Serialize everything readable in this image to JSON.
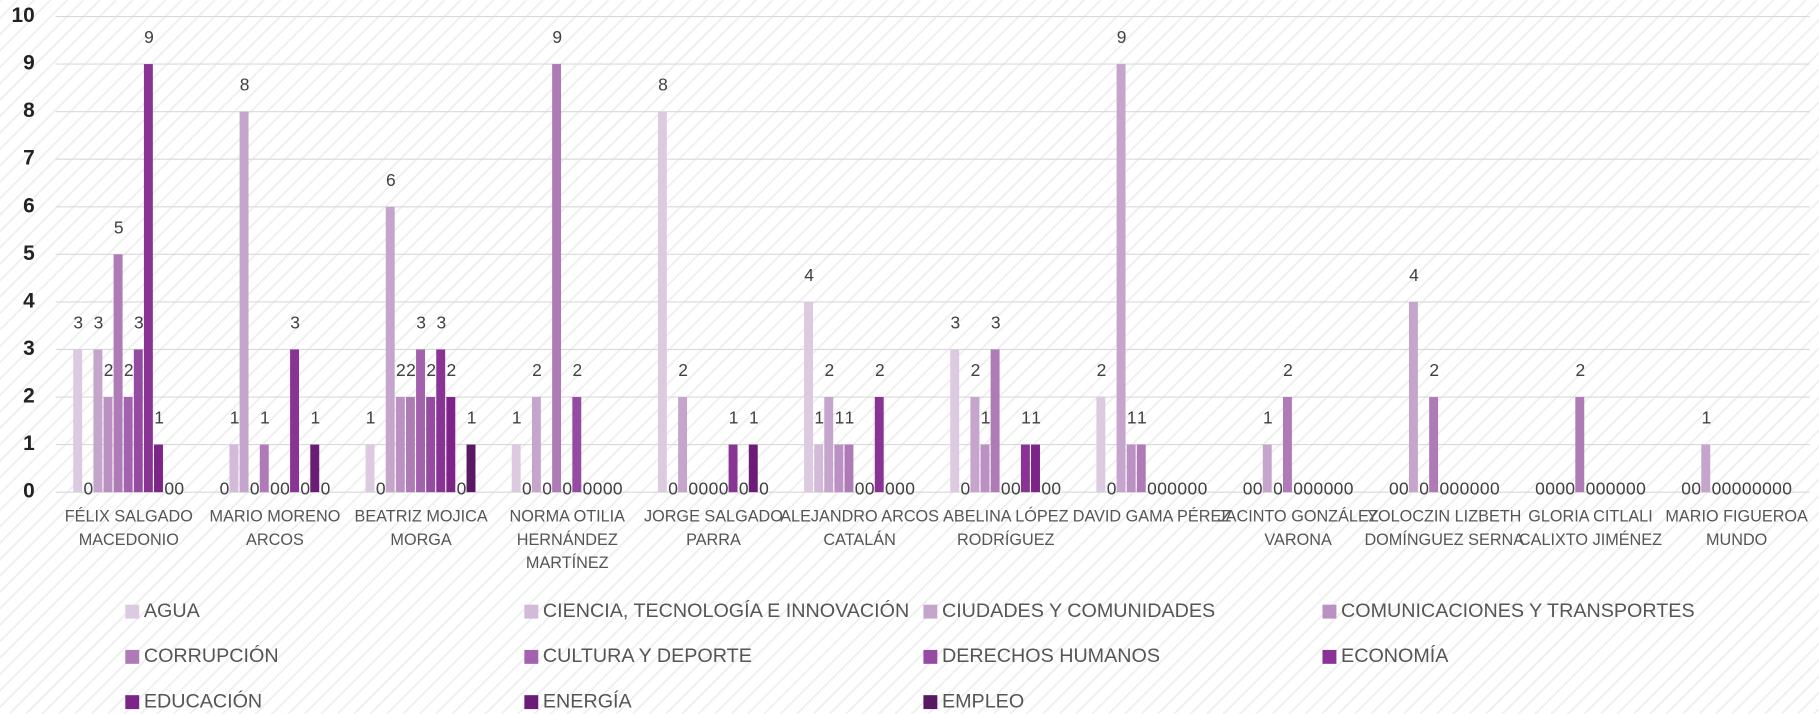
{
  "chart_data": {
    "type": "bar",
    "categories": [
      "FÉLIX SALGADO MACEDONIO",
      "MARIO MORENO ARCOS",
      "BEATRIZ MOJICA MORGA",
      "NORMA OTILIA HERNÁNDEZ MARTÍNEZ",
      "JORGE SALGADO PARRA",
      "ALEJANDRO ARCOS CATALÁN",
      "ABELINA LÓPEZ RODRÍGUEZ",
      "DAVID GAMA PÉREZ",
      "JACINTO GONZÁLEZ VARONA",
      "YOLOCZIN LIZBETH DOMÍNGUEZ SERNA",
      "GLORIA CITLALI CALIXTO JIMÉNEZ",
      "MARIO FIGUEROA MUNDO"
    ],
    "series": [
      {
        "name": "AGUA",
        "color": "#dccbe0",
        "values": [
          3,
          0,
          1,
          1,
          8,
          4,
          3,
          2,
          0,
          0,
          0,
          0
        ]
      },
      {
        "name": "CIENCIA, TECNOLOGÍA E INNOVACIÓN",
        "color": "#d2bad8",
        "values": [
          0,
          1,
          0,
          0,
          0,
          1,
          0,
          0,
          0,
          0,
          0,
          0
        ]
      },
      {
        "name": "CIUDADES Y COMUNIDADES",
        "color": "#c6a5cd",
        "values": [
          3,
          8,
          6,
          2,
          2,
          2,
          2,
          9,
          1,
          4,
          0,
          1
        ]
      },
      {
        "name": "COMUNICACIONES Y TRANSPORTES",
        "color": "#bb90c2",
        "values": [
          2,
          0,
          2,
          0,
          0,
          1,
          1,
          1,
          0,
          0,
          0,
          0
        ]
      },
      {
        "name": "CORRUPCIÓN",
        "color": "#af7bb7",
        "values": [
          5,
          1,
          2,
          9,
          0,
          1,
          3,
          1,
          2,
          2,
          2,
          0
        ]
      },
      {
        "name": "CULTURA Y DEPORTE",
        "color": "#a362ad",
        "values": [
          2,
          0,
          3,
          0,
          0,
          0,
          0,
          0,
          0,
          0,
          0,
          0
        ]
      },
      {
        "name": "DERECHOS HUMANOS",
        "color": "#964ba2",
        "values": [
          3,
          0,
          2,
          2,
          0,
          0,
          0,
          0,
          0,
          0,
          0,
          0
        ]
      },
      {
        "name": "ECONOMÍA",
        "color": "#893395",
        "values": [
          9,
          3,
          3,
          0,
          1,
          2,
          1,
          0,
          0,
          0,
          0,
          0
        ]
      },
      {
        "name": "EDUCACIÓN",
        "color": "#7c2488",
        "values": [
          1,
          0,
          2,
          0,
          0,
          0,
          1,
          0,
          0,
          0,
          0,
          0
        ]
      },
      {
        "name": "ENERGÍA",
        "color": "#6a1c76",
        "values": [
          0,
          1,
          0,
          0,
          1,
          0,
          0,
          0,
          0,
          0,
          0,
          0
        ]
      },
      {
        "name": "EMPLEO",
        "color": "#581862",
        "values": [
          0,
          0,
          1,
          0,
          0,
          0,
          0,
          0,
          0,
          0,
          0,
          0
        ]
      }
    ],
    "ylim": [
      0,
      10
    ],
    "yticks": [
      0,
      1,
      2,
      3,
      4,
      5,
      6,
      7,
      8,
      9,
      10
    ],
    "grid": true
  }
}
